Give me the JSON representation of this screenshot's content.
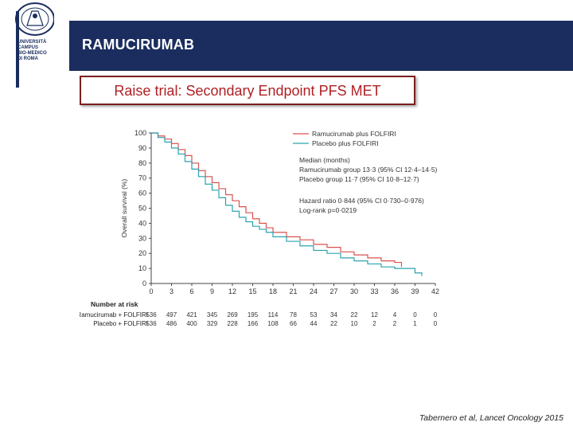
{
  "header": {
    "title": "RAMUCIRUMAB",
    "subtitle": "Raise trial: Secondary Endpoint PFS MET",
    "logo_lines": [
      "UNIVERSITÀ",
      "CAMPUS",
      "BIO-MEDICO",
      "DI ROMA"
    ]
  },
  "citation": "Tabernero et al, Lancet Oncology 2015",
  "colors": {
    "banner": "#1a2d5e",
    "ramucirumab": "#d9534f",
    "placebo": "#2ba3b0",
    "subtitle": "#b02024"
  },
  "chart_data": {
    "type": "line",
    "ylabel": "Overall survival (%)",
    "xlabel": "",
    "xlim": [
      0,
      42
    ],
    "ylim": [
      0,
      100
    ],
    "x_ticks": [
      0,
      3,
      6,
      9,
      12,
      15,
      18,
      21,
      24,
      27,
      30,
      33,
      36,
      39,
      42
    ],
    "y_ticks": [
      0,
      10,
      20,
      30,
      40,
      50,
      60,
      70,
      80,
      90,
      100
    ],
    "series": [
      {
        "name": "Ramucirumab plus FOLFIRI",
        "color": "#d9534f",
        "x": [
          0,
          1,
          2,
          3,
          4,
          5,
          6,
          7,
          8,
          9,
          10,
          11,
          12,
          13,
          14,
          15,
          16,
          17,
          18,
          20,
          22,
          24,
          26,
          28,
          30,
          32,
          34,
          36,
          37
        ],
        "y": [
          100,
          98,
          96,
          93,
          89,
          85,
          80,
          75,
          71,
          67,
          63,
          59,
          55,
          51,
          47,
          43,
          40,
          37,
          34,
          31,
          29,
          26,
          24,
          21,
          19,
          17,
          15,
          14,
          11
        ]
      },
      {
        "name": "Placebo plus FOLFIRI",
        "color": "#2ba3b0",
        "x": [
          0,
          1,
          2,
          3,
          4,
          5,
          6,
          7,
          8,
          9,
          10,
          11,
          12,
          13,
          14,
          15,
          16,
          17,
          18,
          20,
          22,
          24,
          26,
          28,
          30,
          32,
          34,
          36,
          39,
          40
        ],
        "y": [
          100,
          97,
          94,
          90,
          86,
          81,
          76,
          71,
          66,
          62,
          57,
          52,
          48,
          44,
          41,
          38,
          36,
          34,
          31,
          28,
          25,
          22,
          20,
          17,
          15,
          13,
          11,
          10,
          7,
          5
        ]
      }
    ],
    "legend": [
      "Ramucirumab plus FOLFIRI",
      "Placebo plus FOLFIRI"
    ],
    "annotations": {
      "median_title": "Median (months)",
      "median_ram": "Ramucirumab group 13·3 (95% CI 12·4–14·5)",
      "median_pla": "Placebo group 11·7 (95% CI 10·8–12·7)",
      "hazard": "Hazard ratio 0·844 (95% CI 0·730–0·976)",
      "logrank": "Log-rank p=0·0219"
    },
    "risk_table": {
      "title": "Number at risk",
      "rows": [
        {
          "label": "Ramucirumab + FOLFIRI",
          "values": [
            "536",
            "497",
            "421",
            "345",
            "269",
            "195",
            "114",
            "78",
            "53",
            "34",
            "22",
            "12",
            "4",
            "0",
            "0"
          ]
        },
        {
          "label": "Placebo + FOLFIRI",
          "values": [
            "536",
            "486",
            "400",
            "329",
            "228",
            "166",
            "108",
            "66",
            "44",
            "22",
            "10",
            "2",
            "2",
            "1",
            "0"
          ]
        }
      ]
    }
  }
}
